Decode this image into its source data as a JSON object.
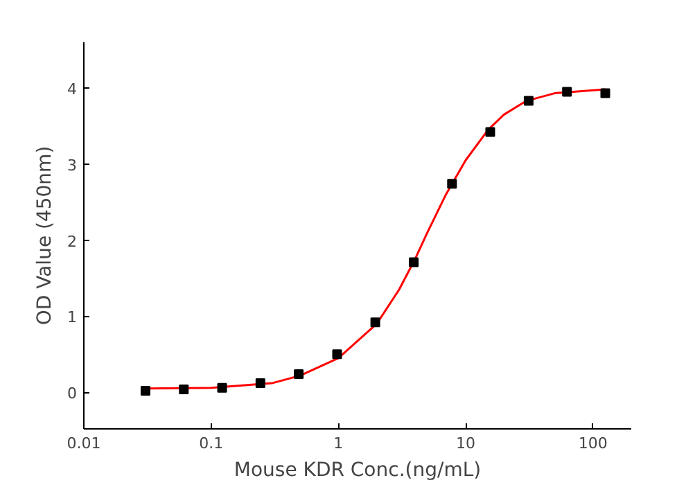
{
  "chart_data": {
    "type": "scatter",
    "xlabel": "Mouse KDR Conc.(ng/mL)",
    "ylabel": "OD Value (450nm)",
    "log": "x",
    "xlim": [
      0.01,
      200
    ],
    "ylim": [
      -0.48,
      4.6
    ],
    "xticks": [
      0.01,
      0.1,
      1,
      10,
      100
    ],
    "yticks": [
      0,
      1,
      2,
      3,
      4
    ],
    "grid": false,
    "series": [
      {
        "marker": "square",
        "color": "#000000",
        "x": [
          0.0305,
          0.061,
          0.122,
          0.244,
          0.488,
          0.977,
          1.95,
          3.91,
          7.81,
          15.6,
          31.25,
          62.5,
          125
        ],
        "values": [
          0.02,
          0.04,
          0.06,
          0.12,
          0.24,
          0.5,
          0.92,
          1.71,
          2.74,
          3.42,
          3.83,
          3.95,
          3.93
        ]
      },
      {
        "type": "line",
        "marker": "none",
        "color": "#ff0000",
        "x": [
          0.0305,
          0.1,
          0.3,
          0.5,
          1,
          2,
          3,
          4,
          5,
          7,
          10,
          15,
          20,
          30,
          50,
          125
        ],
        "values": [
          0.05,
          0.06,
          0.12,
          0.22,
          0.45,
          0.9,
          1.35,
          1.75,
          2.1,
          2.6,
          3.05,
          3.45,
          3.65,
          3.83,
          3.93,
          3.98
        ]
      }
    ]
  }
}
